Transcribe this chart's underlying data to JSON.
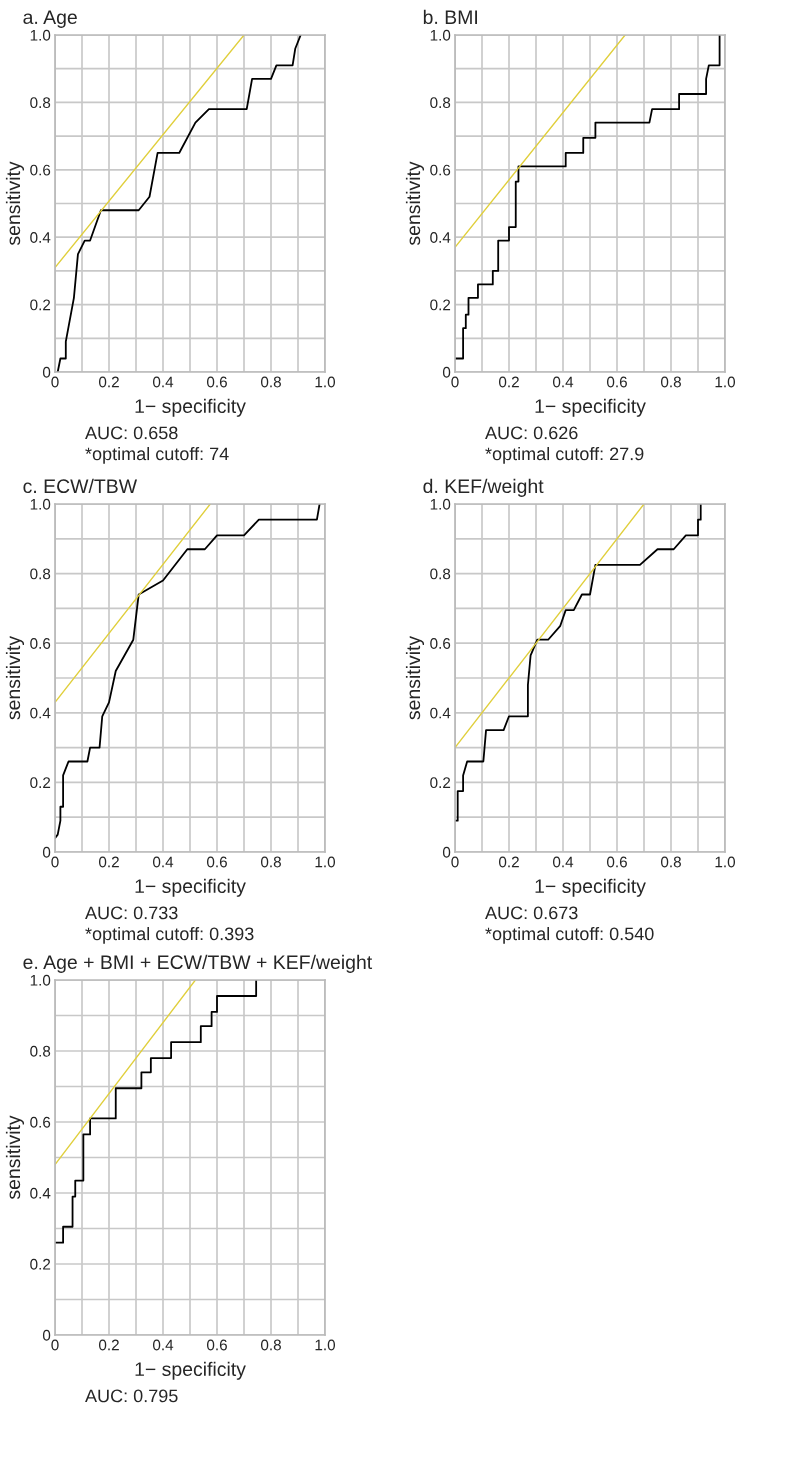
{
  "chart_data": [
    {
      "type": "line",
      "title": "a. Age",
      "xlabel": "1− specificity",
      "ylabel": "sensitivity",
      "xlim": [
        0,
        1
      ],
      "ylim": [
        0,
        1
      ],
      "grid": true,
      "xticks": [
        0,
        {
          "value": 0.1,
          "label": null
        },
        0.2,
        {
          "value": 0.3,
          "label": null
        },
        0.4,
        {
          "value": 0.5,
          "label": null
        },
        0.6,
        {
          "value": 0.7,
          "label": null
        },
        0.8,
        {
          "value": 0.9,
          "label": null
        },
        {
          "value": 1,
          "label": "1.0"
        }
      ],
      "yticks": [
        0,
        {
          "value": 0.1,
          "label": null
        },
        0.2,
        {
          "value": 0.3,
          "label": null
        },
        0.4,
        {
          "value": 0.5,
          "label": null
        },
        0.6,
        {
          "value": 0.7,
          "label": null
        },
        0.8,
        {
          "value": 0.9,
          "label": null
        },
        {
          "value": 1,
          "label": "1.0"
        }
      ],
      "series": [
        {
          "color": "#000000",
          "x": [
            0.01,
            0.02,
            0.04,
            0.04,
            0.07,
            0.085,
            0.11,
            0.13,
            0.17,
            0.31,
            0.35,
            0.38,
            0.46,
            0.52,
            0.57,
            0.71,
            0.73,
            0.8,
            0.82,
            0.88,
            0.89,
            0.91
          ],
          "values": [
            0,
            0.04,
            0.04,
            0.09,
            0.22,
            0.35,
            0.39,
            0.39,
            0.48,
            0.48,
            0.52,
            0.65,
            0.65,
            0.74,
            0.78,
            0.78,
            0.87,
            0.87,
            0.91,
            0.91,
            0.96,
            1.0
          ]
        },
        {
          "color": "#e0cf3c",
          "x": [
            0,
            0.7
          ],
          "values": [
            0.31,
            1.0
          ]
        }
      ],
      "annotations": [
        "AUC: 0.658",
        "*optimal cutoff: 74"
      ]
    },
    {
      "type": "line",
      "title": "b. BMI",
      "xlabel": "1− specificity",
      "ylabel": "sensitivity",
      "xlim": [
        0,
        1
      ],
      "ylim": [
        0,
        1
      ],
      "grid": true,
      "xticks": [
        0,
        {
          "value": 0.1,
          "label": null
        },
        0.2,
        {
          "value": 0.3,
          "label": null
        },
        0.4,
        {
          "value": 0.5,
          "label": null
        },
        0.6,
        {
          "value": 0.7,
          "label": null
        },
        0.8,
        {
          "value": 0.9,
          "label": null
        },
        {
          "value": 1,
          "label": "1.0"
        }
      ],
      "yticks": [
        0,
        {
          "value": 0.1,
          "label": null
        },
        0.2,
        {
          "value": 0.3,
          "label": null
        },
        0.4,
        {
          "value": 0.5,
          "label": null
        },
        0.6,
        {
          "value": 0.7,
          "label": null
        },
        0.8,
        {
          "value": 0.9,
          "label": null
        },
        {
          "value": 1,
          "label": "1.0"
        }
      ],
      "series": [
        {
          "color": "#000000",
          "x": [
            0,
            0.03,
            0.03,
            0.04,
            0.04,
            0.05,
            0.05,
            0.085,
            0.085,
            0.14,
            0.14,
            0.16,
            0.16,
            0.2,
            0.2,
            0.225,
            0.225,
            0.235,
            0.235,
            0.41,
            0.41,
            0.475,
            0.475,
            0.52,
            0.52,
            0.72,
            0.73,
            0.83,
            0.83,
            0.93,
            0.93,
            0.94,
            0.98,
            0.98
          ],
          "values": [
            0.04,
            0.04,
            0.13,
            0.13,
            0.17,
            0.17,
            0.22,
            0.22,
            0.26,
            0.26,
            0.3,
            0.3,
            0.39,
            0.39,
            0.43,
            0.43,
            0.565,
            0.565,
            0.61,
            0.61,
            0.65,
            0.65,
            0.695,
            0.695,
            0.74,
            0.74,
            0.78,
            0.78,
            0.825,
            0.825,
            0.87,
            0.91,
            0.91,
            1.0
          ]
        },
        {
          "color": "#e0cf3c",
          "x": [
            0,
            0.63
          ],
          "values": [
            0.37,
            1.0
          ]
        }
      ],
      "annotations": [
        "AUC: 0.626",
        "*optimal cutoff: 27.9"
      ]
    },
    {
      "type": "line",
      "title": "c. ECW/TBW",
      "xlabel": "1− specificity",
      "ylabel": "sensitivity",
      "xlim": [
        0,
        1
      ],
      "ylim": [
        0,
        1
      ],
      "grid": true,
      "xticks": [
        0,
        {
          "value": 0.1,
          "label": null
        },
        0.2,
        {
          "value": 0.3,
          "label": null
        },
        0.4,
        {
          "value": 0.5,
          "label": null
        },
        0.6,
        {
          "value": 0.7,
          "label": null
        },
        0.8,
        {
          "value": 0.9,
          "label": null
        },
        {
          "value": 1,
          "label": "1.0"
        }
      ],
      "yticks": [
        0,
        {
          "value": 0.1,
          "label": null
        },
        0.2,
        {
          "value": 0.3,
          "label": null
        },
        0.4,
        {
          "value": 0.5,
          "label": null
        },
        0.6,
        {
          "value": 0.7,
          "label": null
        },
        0.8,
        {
          "value": 0.9,
          "label": null
        },
        {
          "value": 1,
          "label": "1.0"
        }
      ],
      "series": [
        {
          "color": "#000000",
          "x": [
            0,
            0.01,
            0.02,
            0.02,
            0.03,
            0.03,
            0.05,
            0.12,
            0.13,
            0.165,
            0.175,
            0.2,
            0.225,
            0.29,
            0.31,
            0.4,
            0.49,
            0.555,
            0.6,
            0.7,
            0.755,
            0.97,
            0.98
          ],
          "values": [
            0.04,
            0.05,
            0.09,
            0.13,
            0.13,
            0.22,
            0.26,
            0.26,
            0.3,
            0.3,
            0.39,
            0.43,
            0.52,
            0.61,
            0.74,
            0.78,
            0.87,
            0.87,
            0.91,
            0.91,
            0.955,
            0.955,
            1.0
          ]
        },
        {
          "color": "#e0cf3c",
          "x": [
            0,
            0.575
          ],
          "values": [
            0.43,
            1.0
          ]
        }
      ],
      "annotations": [
        "AUC: 0.733",
        "*optimal cutoff: 0.393"
      ]
    },
    {
      "type": "line",
      "title": "d. KEF/weight",
      "xlabel": "1− specificity",
      "ylabel": "sensitivity",
      "xlim": [
        0,
        1
      ],
      "ylim": [
        0,
        1
      ],
      "grid": true,
      "xticks": [
        0,
        {
          "value": 0.1,
          "label": null
        },
        0.2,
        {
          "value": 0.3,
          "label": null
        },
        0.4,
        {
          "value": 0.5,
          "label": null
        },
        0.6,
        {
          "value": 0.7,
          "label": null
        },
        0.8,
        {
          "value": 0.9,
          "label": null
        },
        {
          "value": 1,
          "label": "1.0"
        }
      ],
      "yticks": [
        0,
        {
          "value": 0.1,
          "label": null
        },
        0.2,
        {
          "value": 0.3,
          "label": null
        },
        0.4,
        {
          "value": 0.5,
          "label": null
        },
        0.6,
        {
          "value": 0.7,
          "label": null
        },
        0.8,
        {
          "value": 0.9,
          "label": null
        },
        {
          "value": 1,
          "label": "1.0"
        }
      ],
      "series": [
        {
          "color": "#000000",
          "x": [
            0,
            0.01,
            0.01,
            0.03,
            0.03,
            0.045,
            0.105,
            0.115,
            0.18,
            0.2,
            0.27,
            0.27,
            0.28,
            0.305,
            0.345,
            0.39,
            0.41,
            0.44,
            0.47,
            0.5,
            0.52,
            0.685,
            0.75,
            0.81,
            0.855,
            0.9,
            0.9,
            0.91,
            0.91
          ],
          "values": [
            0.09,
            0.09,
            0.175,
            0.175,
            0.22,
            0.26,
            0.26,
            0.35,
            0.35,
            0.39,
            0.39,
            0.48,
            0.565,
            0.61,
            0.61,
            0.65,
            0.695,
            0.695,
            0.74,
            0.74,
            0.825,
            0.825,
            0.87,
            0.87,
            0.91,
            0.91,
            0.955,
            0.955,
            1.0
          ]
        },
        {
          "color": "#e0cf3c",
          "x": [
            0,
            0.7
          ],
          "values": [
            0.3,
            1.0
          ]
        }
      ],
      "annotations": [
        "AUC: 0.673",
        "*optimal cutoff: 0.540"
      ]
    },
    {
      "type": "line",
      "title": "e. Age + BMI + ECW/TBW + KEF/weight",
      "xlabel": "1− specificity",
      "ylabel": "sensitivity",
      "xlim": [
        0,
        1
      ],
      "ylim": [
        0,
        1
      ],
      "grid": true,
      "xticks": [
        0,
        {
          "value": 0.1,
          "label": null
        },
        0.2,
        {
          "value": 0.3,
          "label": null
        },
        0.4,
        {
          "value": 0.5,
          "label": null
        },
        0.6,
        {
          "value": 0.7,
          "label": null
        },
        0.8,
        {
          "value": 0.9,
          "label": null
        },
        {
          "value": 1,
          "label": "1.0"
        }
      ],
      "yticks": [
        0,
        {
          "value": 0.1,
          "label": null
        },
        0.2,
        {
          "value": 0.3,
          "label": null
        },
        0.4,
        {
          "value": 0.5,
          "label": null
        },
        0.6,
        {
          "value": 0.7,
          "label": null
        },
        0.8,
        {
          "value": 0.9,
          "label": null
        },
        {
          "value": 1,
          "label": "1.0"
        }
      ],
      "series": [
        {
          "color": "#000000",
          "x": [
            0,
            0.03,
            0.03,
            0.065,
            0.065,
            0.075,
            0.075,
            0.105,
            0.105,
            0.13,
            0.13,
            0.225,
            0.225,
            0.32,
            0.32,
            0.355,
            0.355,
            0.43,
            0.43,
            0.54,
            0.54,
            0.58,
            0.58,
            0.6,
            0.6,
            0.745,
            0.745
          ],
          "values": [
            0.26,
            0.26,
            0.305,
            0.305,
            0.39,
            0.39,
            0.435,
            0.435,
            0.565,
            0.565,
            0.61,
            0.61,
            0.695,
            0.695,
            0.74,
            0.74,
            0.78,
            0.78,
            0.825,
            0.825,
            0.87,
            0.87,
            0.91,
            0.91,
            0.955,
            0.955,
            1.0
          ]
        },
        {
          "color": "#e0cf3c",
          "x": [
            0,
            0.52
          ],
          "values": [
            0.48,
            1.0
          ]
        }
      ],
      "annotations": [
        "AUC: 0.795"
      ]
    }
  ]
}
